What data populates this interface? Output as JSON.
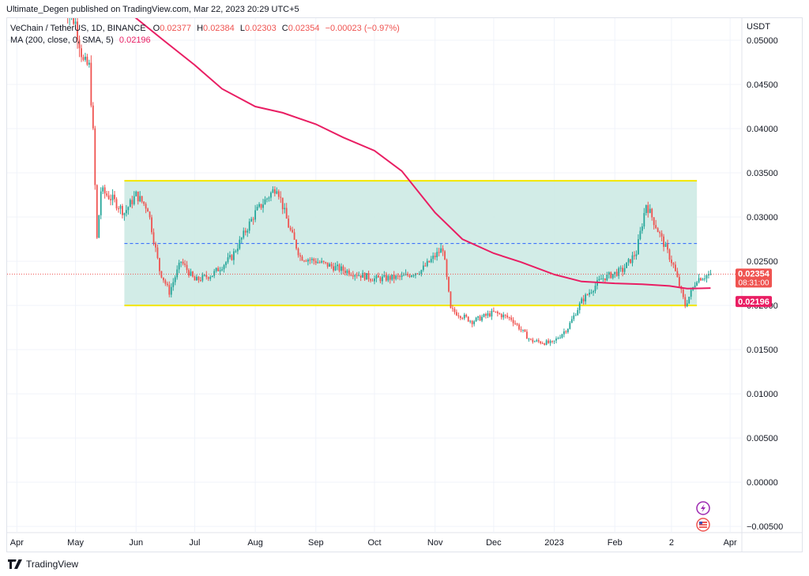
{
  "header": {
    "publisher_line": "Ultimate_Degen published on TradingView.com, Mar 22, 2023 20:29 UTC+5"
  },
  "legend": {
    "symbol": "VeChain / TetherUS, 1D, BINANCE",
    "open_label": "O",
    "open": "0.02377",
    "high_label": "H",
    "high": "0.02384",
    "low_label": "L",
    "low": "0.02303",
    "close_label": "C",
    "close": "0.02354",
    "change": "−0.00023 (−0.97%)",
    "ma_label": "MA (200, close, 0, SMA, 5)",
    "ma_value": "0.02196"
  },
  "axis": {
    "currency": "USDT"
  },
  "price_tags": {
    "last_price": "0.02354",
    "countdown": "08:31:00",
    "ma_price": "0.02196"
  },
  "footer": {
    "brand": "TradingView"
  },
  "colors": {
    "up": "#26a69a",
    "down": "#ef5350",
    "ma": "#e91e63",
    "box_fill": "#cdeae4",
    "box_line": "#f2e600",
    "mid_line": "#2962ff",
    "last_line": "#ef5350",
    "grid": "#f0f3fa"
  },
  "icons": [
    "lightning-icon",
    "us-flag-icon"
  ],
  "chart_data": {
    "type": "candlestick",
    "y_ticks": [
      "0.05000",
      "0.04500",
      "0.04000",
      "0.03500",
      "0.03000",
      "0.02500",
      "0.02000",
      "0.01500",
      "0.01000",
      "0.00500",
      "0.00000",
      "−0.00500"
    ],
    "y_tick_values": [
      0.05,
      0.045,
      0.04,
      0.035,
      0.03,
      0.025,
      0.02,
      0.015,
      0.01,
      0.005,
      0.0,
      -0.005
    ],
    "ylim": [
      -0.0057,
      0.0525
    ],
    "x_ticks": [
      "Apr",
      "May",
      "Jun",
      "Jul",
      "Aug",
      "Sep",
      "Oct",
      "Nov",
      "Dec",
      "2023",
      "Feb",
      "2",
      "Apr"
    ],
    "x_tick_dates": [
      "2022-04-01",
      "2022-05-01",
      "2022-06-01",
      "2022-07-01",
      "2022-08-01",
      "2022-09-01",
      "2022-10-01",
      "2022-11-01",
      "2022-12-01",
      "2023-01-01",
      "2023-02-01",
      "2023-03-02",
      "2023-04-01"
    ],
    "xlim": [
      "2022-03-27",
      "2023-04-07"
    ],
    "grid": true,
    "range_box": {
      "top": 0.0341,
      "bottom": 0.02,
      "mid": 0.027,
      "start": "2022-05-26",
      "end": "2023-03-15"
    },
    "last_price": 0.02354,
    "ma_last": 0.02196,
    "ma_series": [
      [
        "2022-05-10",
        0.056
      ],
      [
        "2022-06-01",
        0.0525
      ],
      [
        "2022-06-15",
        0.05
      ],
      [
        "2022-07-01",
        0.0472
      ],
      [
        "2022-07-15",
        0.0445
      ],
      [
        "2022-08-01",
        0.0425
      ],
      [
        "2022-08-15",
        0.0418
      ],
      [
        "2022-09-01",
        0.0405
      ],
      [
        "2022-09-15",
        0.039
      ],
      [
        "2022-10-01",
        0.0375
      ],
      [
        "2022-10-15",
        0.0352
      ],
      [
        "2022-11-01",
        0.0305
      ],
      [
        "2022-11-15",
        0.0275
      ],
      [
        "2022-12-01",
        0.0259
      ],
      [
        "2022-12-15",
        0.0249
      ],
      [
        "2023-01-01",
        0.0235
      ],
      [
        "2023-01-15",
        0.0227
      ],
      [
        "2023-02-01",
        0.0225
      ],
      [
        "2023-02-15",
        0.0224
      ],
      [
        "2023-03-01",
        0.0222
      ],
      [
        "2023-03-10",
        0.0219
      ],
      [
        "2023-03-22",
        0.02196
      ]
    ],
    "price_path": [
      [
        "2022-04-25",
        0.054
      ],
      [
        "2022-05-01",
        0.052
      ],
      [
        "2022-05-05",
        0.0475
      ],
      [
        "2022-05-08",
        0.047
      ],
      [
        "2022-05-10",
        0.0395
      ],
      [
        "2022-05-12",
        0.0275
      ],
      [
        "2022-05-14",
        0.033
      ],
      [
        "2022-05-20",
        0.032
      ],
      [
        "2022-05-26",
        0.0305
      ],
      [
        "2022-06-01",
        0.0325
      ],
      [
        "2022-06-07",
        0.031
      ],
      [
        "2022-06-13",
        0.024
      ],
      [
        "2022-06-18",
        0.0215
      ],
      [
        "2022-06-24",
        0.025
      ],
      [
        "2022-07-01",
        0.0228
      ],
      [
        "2022-07-10",
        0.0235
      ],
      [
        "2022-07-20",
        0.0255
      ],
      [
        "2022-08-01",
        0.0305
      ],
      [
        "2022-08-12",
        0.0335
      ],
      [
        "2022-08-18",
        0.029
      ],
      [
        "2022-08-24",
        0.0255
      ],
      [
        "2022-09-01",
        0.025
      ],
      [
        "2022-09-15",
        0.024
      ],
      [
        "2022-10-01",
        0.023
      ],
      [
        "2022-10-15",
        0.0232
      ],
      [
        "2022-10-25",
        0.024
      ],
      [
        "2022-11-05",
        0.0265
      ],
      [
        "2022-11-09",
        0.0195
      ],
      [
        "2022-11-20",
        0.0182
      ],
      [
        "2022-12-01",
        0.0192
      ],
      [
        "2022-12-10",
        0.0185
      ],
      [
        "2022-12-20",
        0.016
      ],
      [
        "2022-12-31",
        0.0157
      ],
      [
        "2023-01-08",
        0.0175
      ],
      [
        "2023-01-15",
        0.0205
      ],
      [
        "2023-01-25",
        0.023
      ],
      [
        "2023-02-05",
        0.024
      ],
      [
        "2023-02-12",
        0.026
      ],
      [
        "2023-02-17",
        0.0315
      ],
      [
        "2023-02-24",
        0.028
      ],
      [
        "2023-03-03",
        0.0245
      ],
      [
        "2023-03-09",
        0.02
      ],
      [
        "2023-03-15",
        0.023
      ],
      [
        "2023-03-22",
        0.02354
      ]
    ]
  }
}
